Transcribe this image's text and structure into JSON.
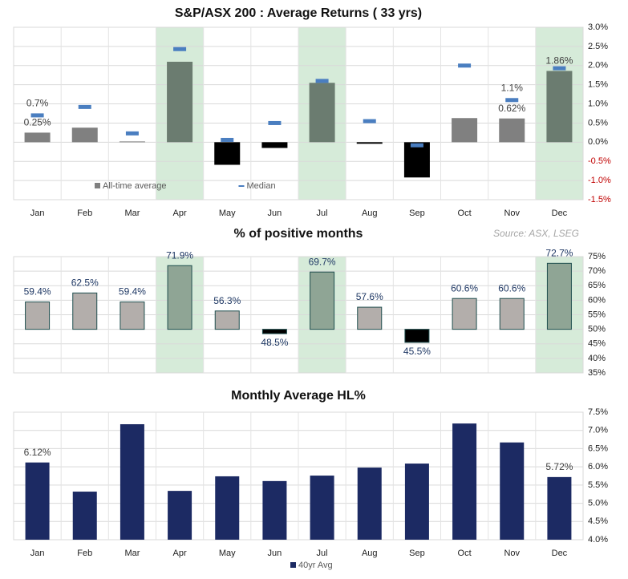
{
  "chart_data": [
    {
      "type": "bar",
      "title": "S&P/ASX 200 : Average Returns ( 33 yrs)",
      "categories": [
        "Jan",
        "Feb",
        "Mar",
        "Apr",
        "May",
        "Jun",
        "Jul",
        "Aug",
        "Sep",
        "Oct",
        "Nov",
        "Dec"
      ],
      "series": [
        {
          "name": "All-time average",
          "color": "#808080",
          "highlight_color": "#6b7c70",
          "negative_color": "#000000",
          "values": [
            0.25,
            0.38,
            0.02,
            2.1,
            -0.59,
            -0.15,
            1.55,
            -0.04,
            -0.92,
            0.63,
            0.62,
            1.86
          ],
          "value_labels": [
            "0.25%",
            null,
            null,
            null,
            null,
            null,
            null,
            null,
            null,
            null,
            "0.62%",
            "1.86%"
          ]
        },
        {
          "name": "Median",
          "color": "#4a7ec0",
          "style": "dash",
          "values": [
            0.7,
            0.92,
            0.23,
            2.43,
            0.06,
            0.5,
            1.6,
            0.55,
            -0.08,
            2.0,
            1.1,
            1.93
          ],
          "value_labels": [
            "0.7%",
            null,
            null,
            null,
            null,
            null,
            null,
            null,
            null,
            null,
            "1.1%",
            null
          ]
        }
      ],
      "highlight": [
        3,
        6,
        11
      ],
      "highlight_fill": "#d6ebd9",
      "ylim": [
        -1.5,
        3.0
      ],
      "yticks": [
        {
          "value": 3.0,
          "label": "3.0%"
        },
        {
          "value": 2.5,
          "label": "2.5%"
        },
        {
          "value": 2.0,
          "label": "2.0%"
        },
        {
          "value": 1.5,
          "label": "1.5%"
        },
        {
          "value": 1.0,
          "label": "1.0%"
        },
        {
          "value": 0.5,
          "label": "0.5%"
        },
        {
          "value": 0.0,
          "label": "0.0%"
        },
        {
          "value": -0.5,
          "label": "-0.5%"
        },
        {
          "value": -1.0,
          "label": "-1.0%"
        },
        {
          "value": -1.5,
          "label": "-1.5%"
        }
      ],
      "negative_tick_color": "#c00000",
      "grid": true,
      "legend": "inside-bottom"
    },
    {
      "type": "bar",
      "title": "% of positive months",
      "source": "Source: ASX, LSEG",
      "series": [
        {
          "color": "#b3aeab",
          "highlight_color": "#8fa595",
          "negative_color": "#000000",
          "border": "#1f4e4e",
          "values": [
            59.4,
            62.5,
            59.4,
            71.9,
            56.3,
            48.5,
            69.7,
            57.6,
            45.5,
            60.6,
            60.6,
            72.7
          ],
          "value_labels": [
            "59.4%",
            "62.5%",
            "59.4%",
            "71.9%",
            "56.3%",
            "48.5%",
            "69.7%",
            "57.6%",
            "45.5%",
            "60.6%",
            "60.6%",
            "72.7%"
          ]
        }
      ],
      "highlight": [
        3,
        6,
        11
      ],
      "highlight_fill": "#d6ebd9",
      "base": 50,
      "ylim": [
        35,
        75
      ],
      "yticks": [
        {
          "value": 75,
          "label": "75%"
        },
        {
          "value": 70,
          "label": "70%"
        },
        {
          "value": 65,
          "label": "65%"
        },
        {
          "value": 60,
          "label": "60%"
        },
        {
          "value": 55,
          "label": "55%"
        },
        {
          "value": 50,
          "label": "50%"
        },
        {
          "value": 45,
          "label": "45%"
        },
        {
          "value": 40,
          "label": "40%"
        },
        {
          "value": 35,
          "label": "35%"
        }
      ],
      "grid": true
    },
    {
      "type": "bar",
      "title": "Monthly Average HL%",
      "categories": [
        "Jan",
        "Feb",
        "Mar",
        "Apr",
        "May",
        "Jun",
        "Jul",
        "Aug",
        "Sep",
        "Oct",
        "Nov",
        "Dec"
      ],
      "series": [
        {
          "name": "40yr Avg",
          "color": "#1c2a63",
          "values": [
            6.12,
            5.32,
            7.17,
            5.34,
            5.74,
            5.61,
            5.76,
            5.98,
            6.09,
            7.19,
            6.67,
            5.72
          ],
          "value_labels": [
            "6.12%",
            null,
            null,
            null,
            null,
            null,
            null,
            null,
            null,
            null,
            null,
            "5.72%"
          ]
        }
      ],
      "ylim": [
        4.0,
        7.5
      ],
      "yticks": [
        {
          "value": 7.5,
          "label": "7.5%"
        },
        {
          "value": 7.0,
          "label": "7.0%"
        },
        {
          "value": 6.5,
          "label": "6.5%"
        },
        {
          "value": 6.0,
          "label": "6.0%"
        },
        {
          "value": 5.5,
          "label": "5.5%"
        },
        {
          "value": 5.0,
          "label": "5.0%"
        },
        {
          "value": 4.5,
          "label": "4.5%"
        },
        {
          "value": 4.0,
          "label": "4.0%"
        }
      ],
      "grid": true,
      "legend": "bottom"
    }
  ]
}
